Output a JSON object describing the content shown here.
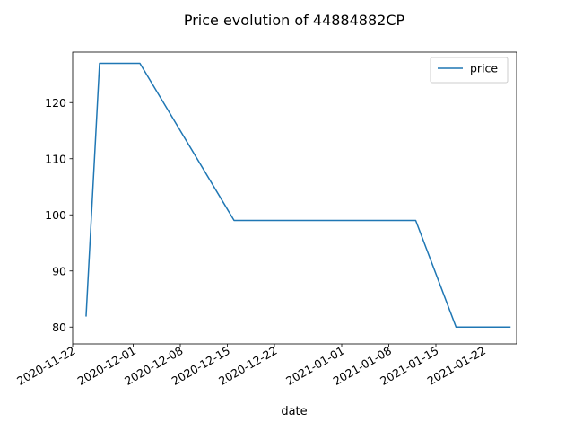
{
  "chart_data": {
    "type": "line",
    "title": "Price evolution of 44884882CP",
    "xlabel": "date",
    "ylabel": "",
    "legend": {
      "placement": "top-right",
      "entries": [
        "price"
      ]
    },
    "grid": false,
    "xlim": [
      "2020-11-22",
      "2021-01-27"
    ],
    "ylim": [
      77,
      129
    ],
    "x_ticks": [
      "2020-11-22",
      "2020-12-01",
      "2020-12-08",
      "2020-12-15",
      "2020-12-22",
      "2021-01-01",
      "2021-01-08",
      "2021-01-15",
      "2021-01-22"
    ],
    "y_ticks": [
      80,
      90,
      100,
      110,
      120
    ],
    "series": [
      {
        "name": "price",
        "color": "#1f77b4",
        "x": [
          "2020-11-24",
          "2020-11-26",
          "2020-12-02",
          "2020-12-16",
          "2021-01-12",
          "2021-01-18",
          "2021-01-26"
        ],
        "y": [
          82,
          127,
          127,
          99,
          99,
          80,
          80
        ]
      }
    ]
  }
}
